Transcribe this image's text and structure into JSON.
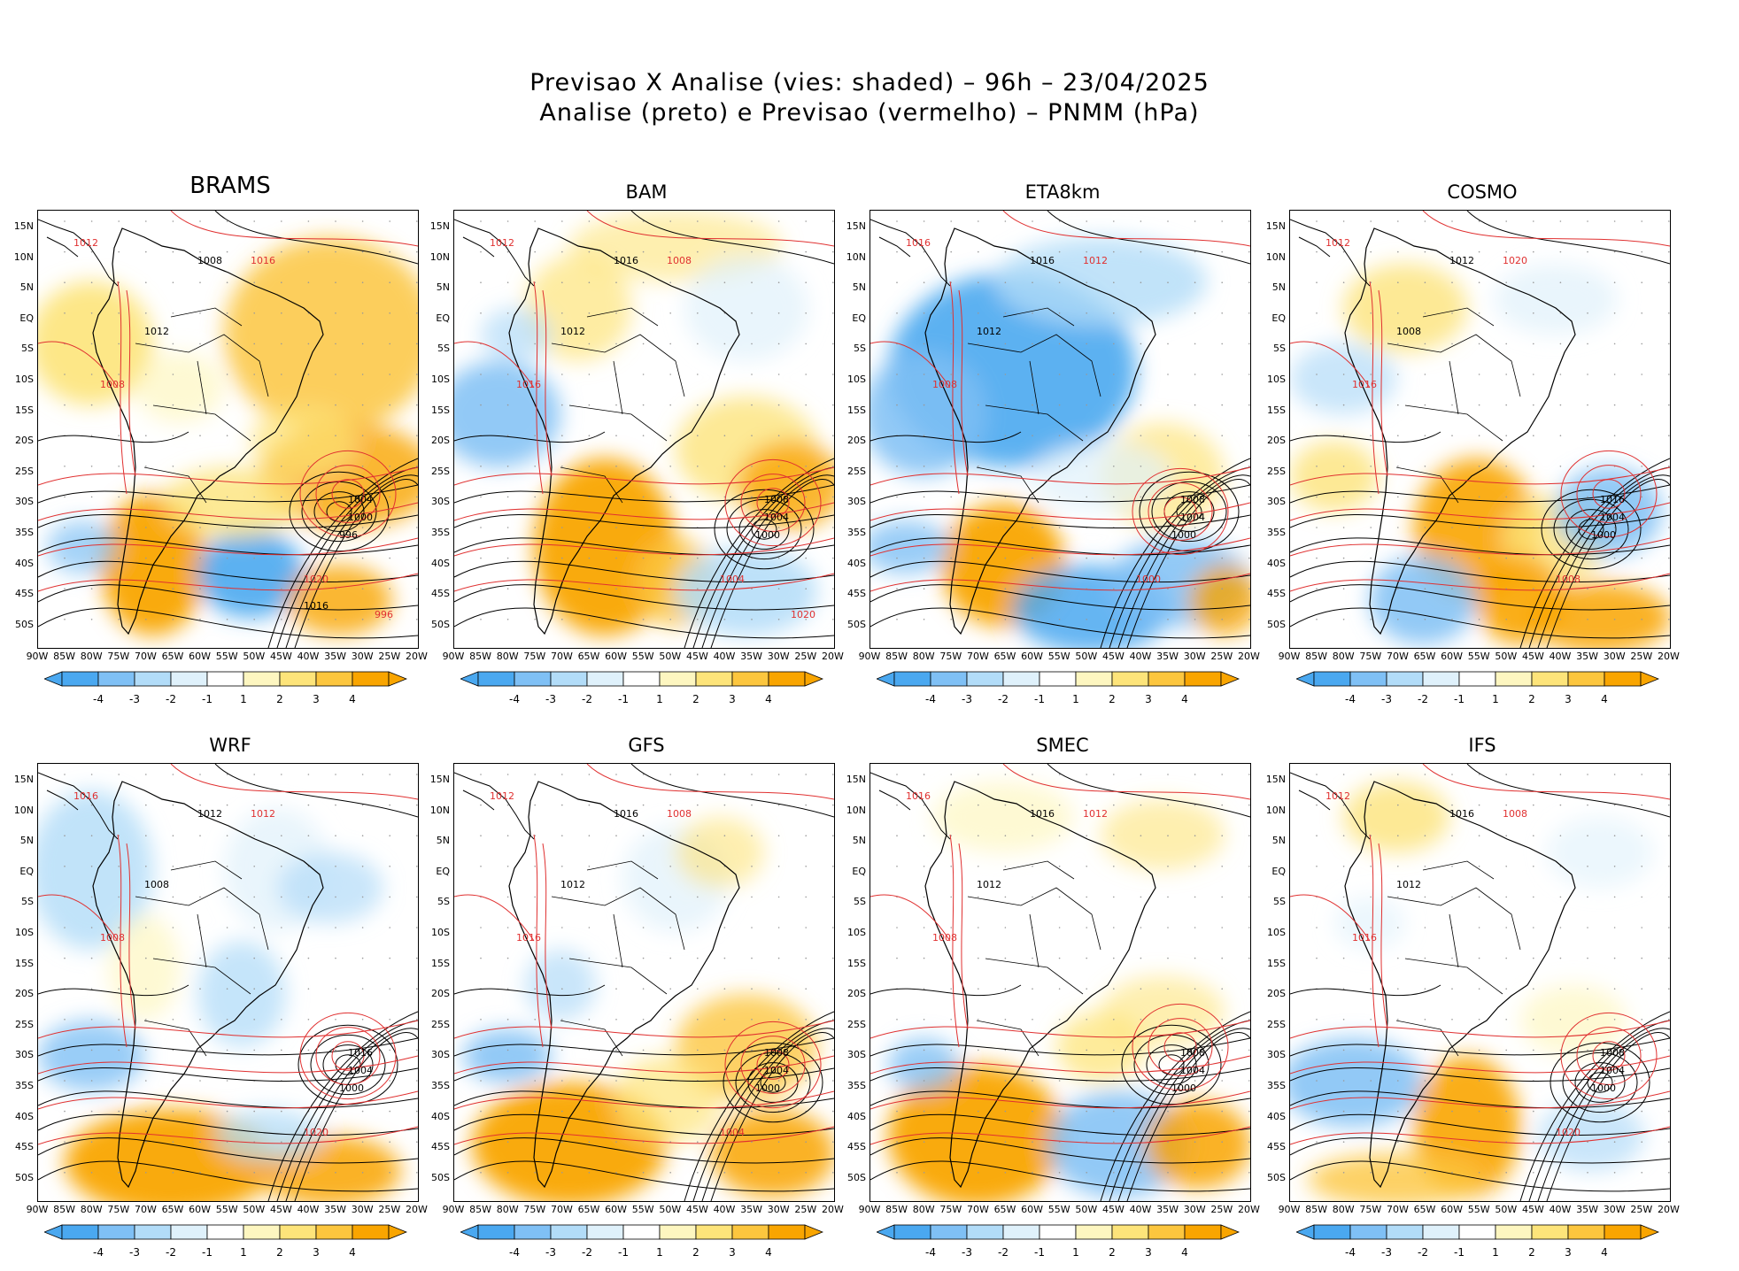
{
  "title": {
    "line1": "Previsao X Analise (vies: shaded) – 96h – 23/04/2025",
    "line2": "Analise (preto) e Previsao (vermelho) – PNMM (hPa)"
  },
  "colors": {
    "neg4": "#4aa8f0",
    "neg3": "#7fc0f5",
    "neg2": "#b2dcf8",
    "neg1": "#dff1fb",
    "zero": "#ffffff",
    "pos1": "#fdf6c0",
    "pos2": "#fde47a",
    "pos3": "#fcc63e",
    "pos4": "#f9a500",
    "analysis_contour": "#000000",
    "forecast_contour": "#e03030"
  },
  "lat_labels": [
    "15N",
    "10N",
    "5N",
    "EQ",
    "5S",
    "10S",
    "15S",
    "20S",
    "25S",
    "30S",
    "35S",
    "40S",
    "45S",
    "50S"
  ],
  "lon_labels": [
    "90W",
    "85W",
    "80W",
    "75W",
    "70W",
    "65W",
    "60W",
    "55W",
    "50W",
    "45W",
    "40W",
    "35W",
    "30W",
    "25W",
    "20W"
  ],
  "colorbar_labels": [
    "-4",
    "-3",
    "-2",
    "-1",
    "1",
    "2",
    "3",
    "4"
  ],
  "panels": [
    {
      "name": "BRAMS",
      "bias": "warm",
      "black": [
        {
          "t": "1008"
        },
        {
          "t": "1012"
        },
        {
          "t": "1004"
        },
        {
          "t": "1000"
        },
        {
          "t": "996"
        },
        {
          "t": "1016"
        }
      ],
      "red": [
        {
          "t": "1012"
        },
        {
          "t": "1016"
        },
        {
          "t": "1008"
        },
        {
          "t": "1020"
        },
        {
          "t": "996"
        }
      ]
    },
    {
      "name": "BAM",
      "bias": "mixed",
      "black": [
        {
          "t": "1016"
        },
        {
          "t": "1012"
        },
        {
          "t": "1008"
        },
        {
          "t": "1004"
        },
        {
          "t": "1000"
        }
      ],
      "red": [
        {
          "t": "1012"
        },
        {
          "t": "1008"
        },
        {
          "t": "1016"
        },
        {
          "t": "1004"
        },
        {
          "t": "1020"
        }
      ]
    },
    {
      "name": "ETA8km",
      "bias": "cold",
      "black": [
        {
          "t": "1016"
        },
        {
          "t": "1012"
        },
        {
          "t": "1008"
        },
        {
          "t": "1004"
        },
        {
          "t": "1000"
        }
      ],
      "red": [
        {
          "t": "1016"
        },
        {
          "t": "1012"
        },
        {
          "t": "1008"
        },
        {
          "t": "1000"
        }
      ]
    },
    {
      "name": "COSMO",
      "bias": "mixed2",
      "black": [
        {
          "t": "1012"
        },
        {
          "t": "1008"
        },
        {
          "t": "1016"
        },
        {
          "t": "1004"
        },
        {
          "t": "1000"
        }
      ],
      "red": [
        {
          "t": "1012"
        },
        {
          "t": "1020"
        },
        {
          "t": "1016"
        },
        {
          "t": "1008"
        }
      ]
    },
    {
      "name": "WRF",
      "bias": "light",
      "black": [
        {
          "t": "1012"
        },
        {
          "t": "1008"
        },
        {
          "t": "1016"
        },
        {
          "t": "1004"
        },
        {
          "t": "1000"
        }
      ],
      "red": [
        {
          "t": "1016"
        },
        {
          "t": "1012"
        },
        {
          "t": "1008"
        },
        {
          "t": "1020"
        }
      ]
    },
    {
      "name": "GFS",
      "bias": "light2",
      "black": [
        {
          "t": "1016"
        },
        {
          "t": "1012"
        },
        {
          "t": "1008"
        },
        {
          "t": "1004"
        },
        {
          "t": "1000"
        }
      ],
      "red": [
        {
          "t": "1012"
        },
        {
          "t": "1008"
        },
        {
          "t": "1016"
        },
        {
          "t": "1004"
        }
      ]
    },
    {
      "name": "SMEC",
      "bias": "light3",
      "black": [
        {
          "t": "1016"
        },
        {
          "t": "1012"
        },
        {
          "t": "1008"
        },
        {
          "t": "1004"
        },
        {
          "t": "1000"
        }
      ],
      "red": [
        {
          "t": "1016"
        },
        {
          "t": "1012"
        },
        {
          "t": "1008"
        }
      ]
    },
    {
      "name": "IFS",
      "bias": "light4",
      "black": [
        {
          "t": "1016"
        },
        {
          "t": "1012"
        },
        {
          "t": "1008"
        },
        {
          "t": "1004"
        },
        {
          "t": "1000"
        }
      ],
      "red": [
        {
          "t": "1012"
        },
        {
          "t": "1008"
        },
        {
          "t": "1016"
        },
        {
          "t": "1020"
        }
      ]
    }
  ]
}
